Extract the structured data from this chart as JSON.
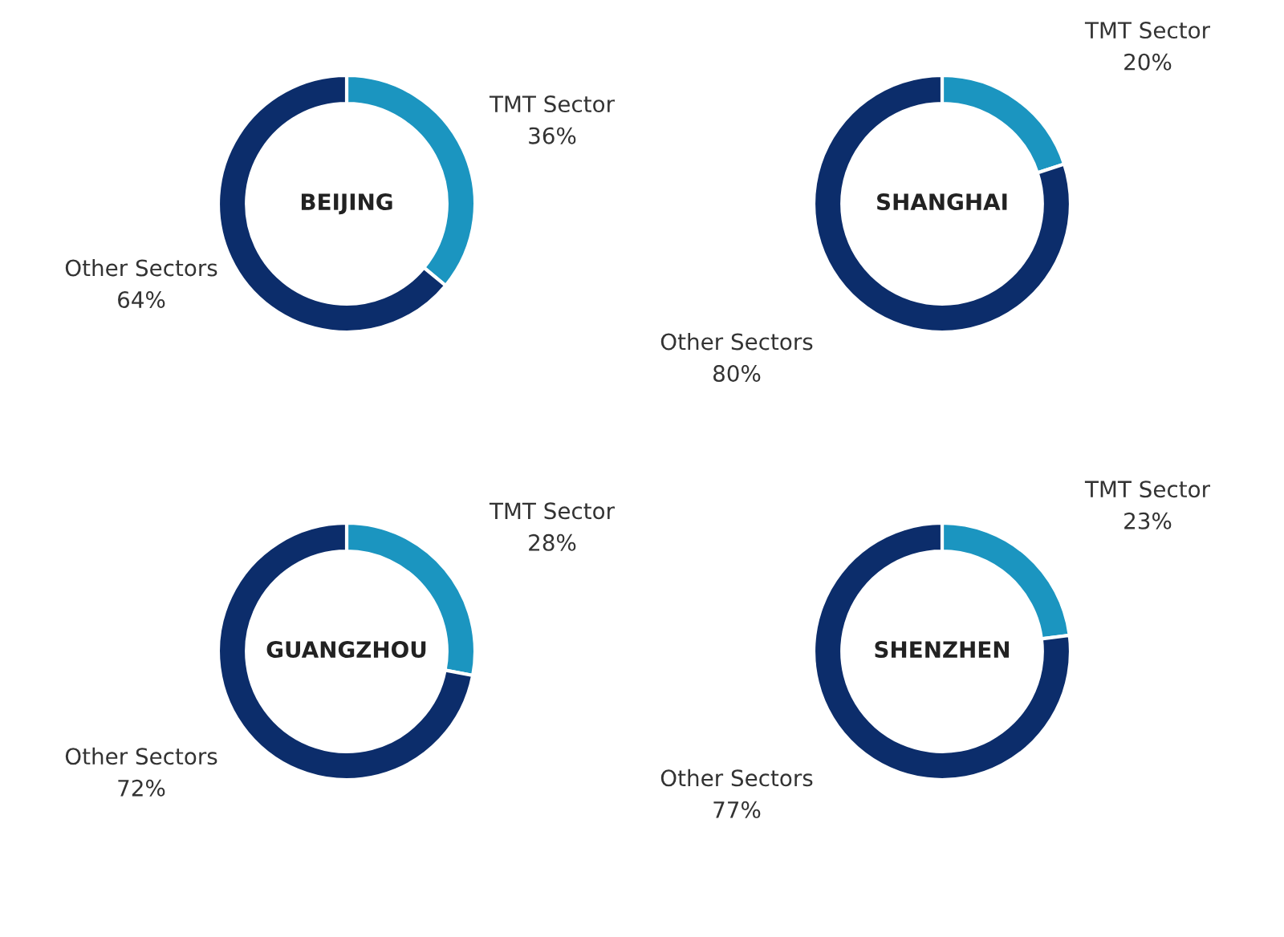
{
  "chart_data": [
    {
      "type": "donut",
      "title": "BEIJING",
      "categories": [
        "TMT Sector",
        "Other Sectors"
      ],
      "values": [
        36,
        64
      ],
      "value_labels": [
        "36%",
        "64%"
      ],
      "colors": [
        "#1b95c0",
        "#0c2d6b"
      ]
    },
    {
      "type": "donut",
      "title": "SHANGHAI",
      "categories": [
        "TMT Sector",
        "Other Sectors"
      ],
      "values": [
        20,
        80
      ],
      "value_labels": [
        "20%",
        "80%"
      ],
      "colors": [
        "#1b95c0",
        "#0c2d6b"
      ]
    },
    {
      "type": "donut",
      "title": "GUANGZHOU",
      "categories": [
        "TMT Sector",
        "Other Sectors"
      ],
      "values": [
        28,
        72
      ],
      "value_labels": [
        "28%",
        "72%"
      ],
      "colors": [
        "#1b95c0",
        "#0c2d6b"
      ]
    },
    {
      "type": "donut",
      "title": "SHENZHEN",
      "categories": [
        "TMT Sector",
        "Other Sectors"
      ],
      "values": [
        23,
        77
      ],
      "value_labels": [
        "23%",
        "77%"
      ],
      "colors": [
        "#1b95c0",
        "#0c2d6b"
      ]
    }
  ]
}
